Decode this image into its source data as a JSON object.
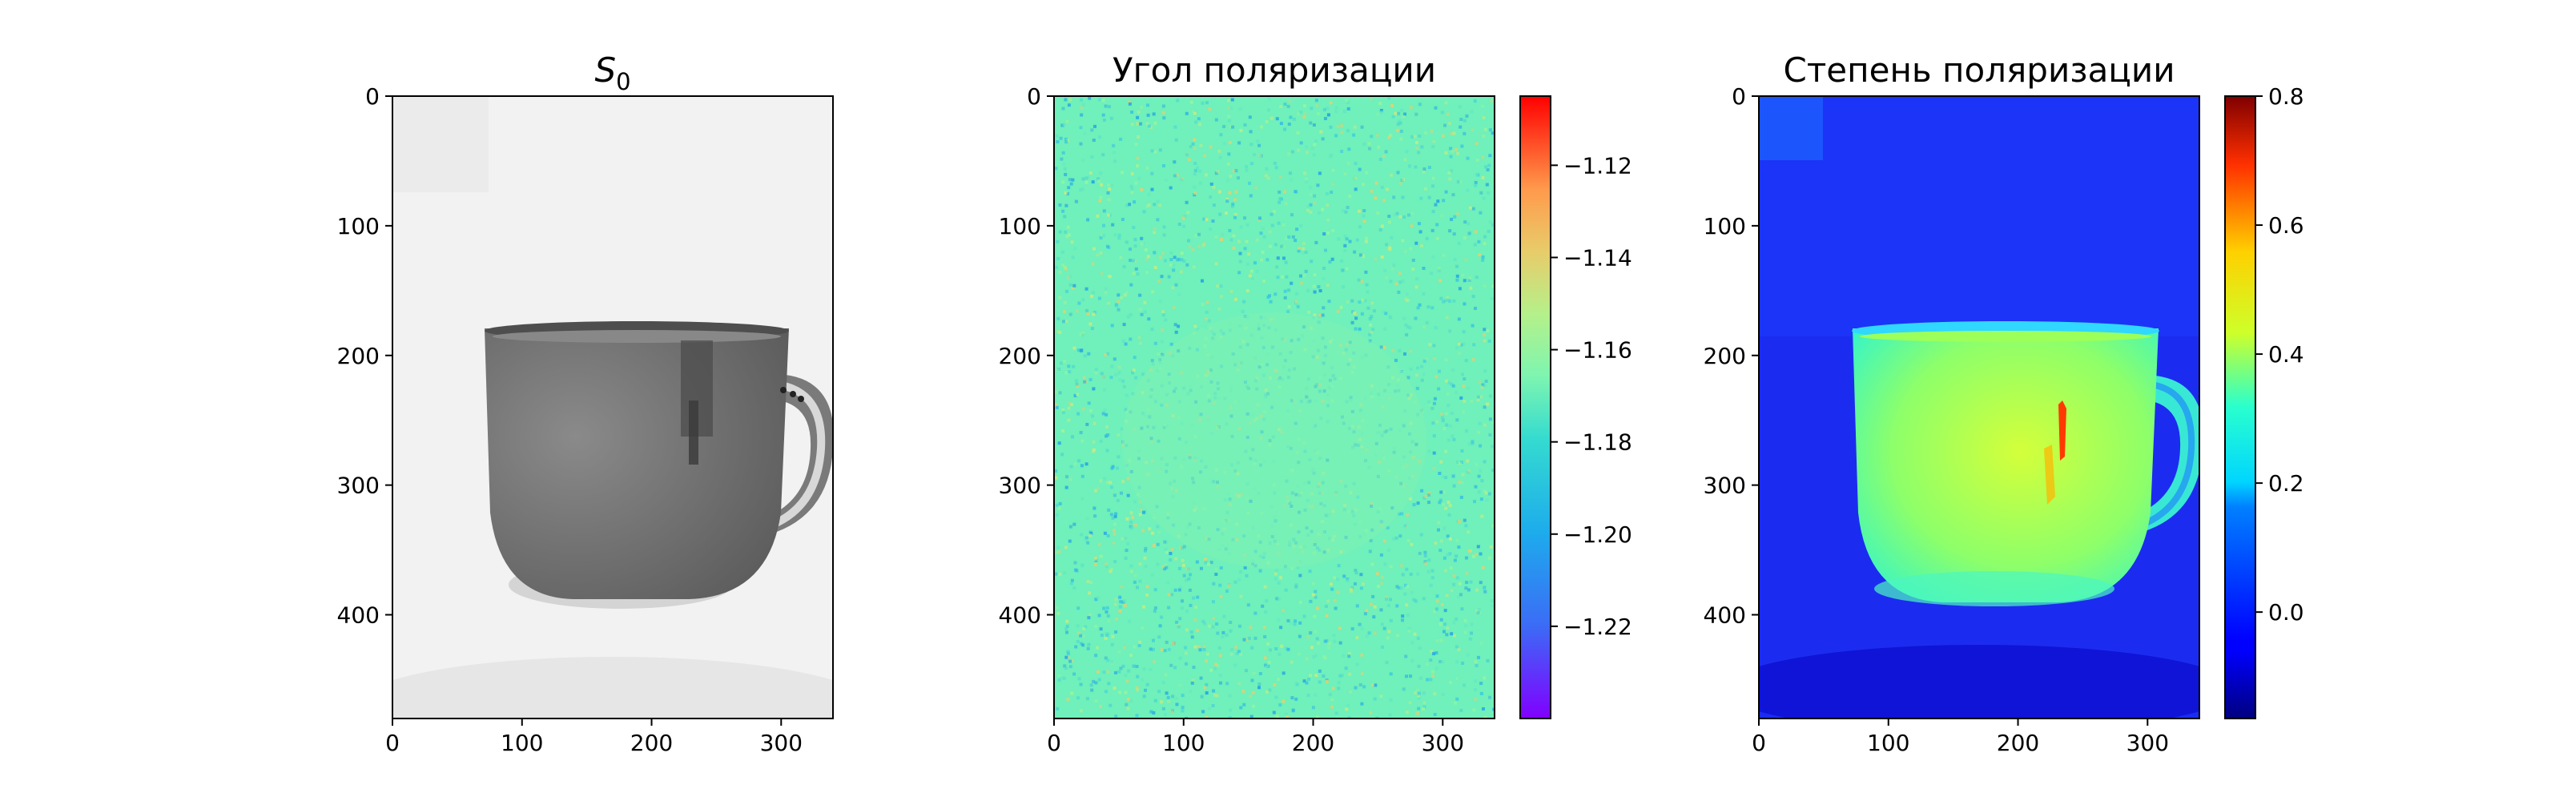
{
  "chart_data": [
    {
      "type": "heatmap",
      "title_base": "S",
      "title_sub": "0",
      "colormap": "gray",
      "x_ticks": [
        0,
        100,
        200,
        300
      ],
      "y_ticks": [
        0,
        100,
        200,
        300,
        400
      ],
      "xlim": [
        0,
        340
      ],
      "ylim": [
        480,
        0
      ]
    },
    {
      "type": "heatmap",
      "title": "Угол поляризации",
      "colormap": "rainbow",
      "x_ticks": [
        0,
        100,
        200,
        300
      ],
      "y_ticks": [
        0,
        100,
        200,
        300,
        400
      ],
      "xlim": [
        0,
        340
      ],
      "ylim": [
        480,
        0
      ],
      "colorbar": {
        "range": [
          -1.24,
          -1.105
        ],
        "ticks": [
          -1.12,
          -1.14,
          -1.16,
          -1.18,
          -1.2,
          -1.22
        ]
      }
    },
    {
      "type": "heatmap",
      "title": "Степень поляризации",
      "colormap": "jet",
      "x_ticks": [
        0,
        100,
        200,
        300
      ],
      "y_ticks": [
        0,
        100,
        200,
        300,
        400
      ],
      "xlim": [
        0,
        340
      ],
      "ylim": [
        480,
        0
      ],
      "colorbar": {
        "range": [
          -0.165,
          0.8
        ],
        "ticks": [
          0.8,
          0.6,
          0.4,
          0.2,
          0.0
        ]
      }
    }
  ]
}
